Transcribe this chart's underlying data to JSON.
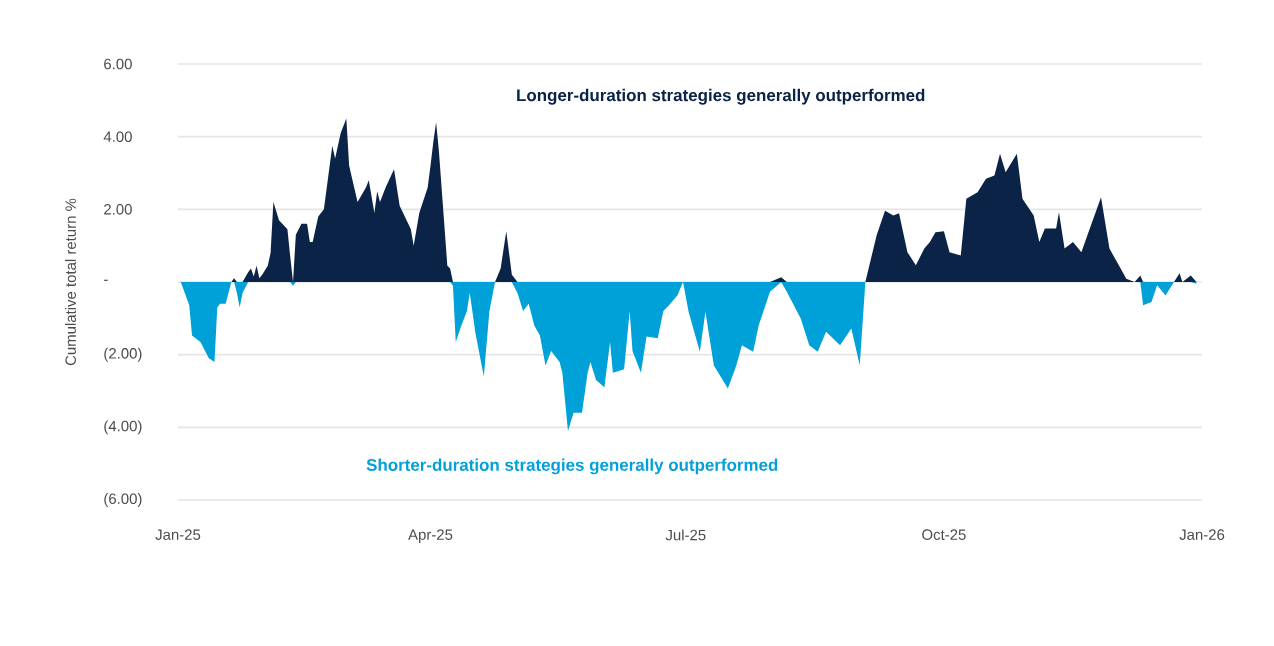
{
  "chart_data": {
    "type": "area",
    "ylabel": "Cumulative total return %",
    "annotations": [
      "Longer-duration strategies generally outperformed",
      "Shorter-duration strategies generally outperformed"
    ],
    "x": [
      "2025-01-02",
      "2025-01-05",
      "2025-01-06",
      "2025-01-09",
      "2025-01-12",
      "2025-01-14",
      "2025-01-15",
      "2025-01-16",
      "2025-01-18",
      "2025-01-20",
      "2025-01-21",
      "2025-01-22",
      "2025-01-23",
      "2025-01-24",
      "2025-01-26",
      "2025-01-27",
      "2025-01-28",
      "2025-01-29",
      "2025-01-30",
      "2025-01-31",
      "2025-02-02",
      "2025-02-03",
      "2025-02-04",
      "2025-02-06",
      "2025-02-09",
      "2025-02-10",
      "2025-02-11",
      "2025-02-12",
      "2025-02-14",
      "2025-02-16",
      "2025-02-17",
      "2025-02-18",
      "2025-02-20",
      "2025-02-22",
      "2025-02-25",
      "2025-02-26",
      "2025-02-28",
      "2025-03-02",
      "2025-03-03",
      "2025-03-06",
      "2025-03-09",
      "2025-03-10",
      "2025-03-12",
      "2025-03-13",
      "2025-03-14",
      "2025-03-16",
      "2025-03-19",
      "2025-03-21",
      "2025-03-25",
      "2025-03-26",
      "2025-03-28",
      "2025-03-31",
      "2025-04-01",
      "2025-04-02",
      "2025-04-03",
      "2025-04-04",
      "2025-04-07",
      "2025-04-08",
      "2025-04-09",
      "2025-04-10",
      "2025-04-12",
      "2025-04-14",
      "2025-04-15",
      "2025-04-17",
      "2025-04-20",
      "2025-04-22",
      "2025-04-24",
      "2025-04-26",
      "2025-04-28",
      "2025-04-30",
      "2025-05-02",
      "2025-05-04",
      "2025-05-06",
      "2025-05-08",
      "2025-05-10",
      "2025-05-12",
      "2025-05-14",
      "2025-05-17",
      "2025-05-18",
      "2025-05-20",
      "2025-05-22",
      "2025-05-25",
      "2025-05-27",
      "2025-05-28",
      "2025-05-30",
      "2025-06-02",
      "2025-06-04",
      "2025-06-05",
      "2025-06-09",
      "2025-06-11",
      "2025-06-12",
      "2025-06-15",
      "2025-06-17",
      "2025-06-21",
      "2025-06-23",
      "2025-06-25",
      "2025-06-28",
      "2025-06-30",
      "2025-07-02",
      "2025-07-06",
      "2025-07-08",
      "2025-07-11",
      "2025-07-16",
      "2025-07-19",
      "2025-07-21",
      "2025-07-25",
      "2025-07-27",
      "2025-07-31",
      "2025-08-04",
      "2025-08-06",
      "2025-08-11",
      "2025-08-14",
      "2025-08-17",
      "2025-08-20",
      "2025-08-25",
      "2025-08-29",
      "2025-09-01",
      "2025-09-03",
      "2025-09-07",
      "2025-09-10",
      "2025-09-13",
      "2025-09-15",
      "2025-09-18",
      "2025-09-21",
      "2025-09-24",
      "2025-09-26",
      "2025-09-28",
      "2025-10-01",
      "2025-10-03",
      "2025-10-07",
      "2025-10-09",
      "2025-10-13",
      "2025-10-16",
      "2025-10-19",
      "2025-10-21",
      "2025-10-23",
      "2025-10-27",
      "2025-10-29",
      "2025-11-02",
      "2025-11-04",
      "2025-11-06",
      "2025-11-10",
      "2025-11-11",
      "2025-11-13",
      "2025-11-16",
      "2025-11-19",
      "2025-11-22",
      "2025-11-26",
      "2025-11-29",
      "2025-12-03",
      "2025-12-05",
      "2025-12-08",
      "2025-12-10",
      "2025-12-11",
      "2025-12-14",
      "2025-12-16",
      "2025-12-19",
      "2025-12-22",
      "2025-12-24",
      "2025-12-25",
      "2025-12-28",
      "2025-12-30"
    ],
    "series": [
      {
        "color": "#0b2346",
        "values": [
          0,
          0,
          0,
          0,
          0,
          0,
          0,
          0,
          0,
          0,
          0.1,
          0,
          0,
          0,
          0.27,
          0.37,
          0.15,
          0.45,
          0.1,
          0.2,
          0.45,
          0.8,
          2.2,
          1.7,
          1.45,
          0.7,
          0,
          1.3,
          1.6,
          1.6,
          1.1,
          1.1,
          1.8,
          2.0,
          3.75,
          3.4,
          4.1,
          4.5,
          3.2,
          2.2,
          2.6,
          2.8,
          1.9,
          2.5,
          2.2,
          2.6,
          3.1,
          2.1,
          1.45,
          1.0,
          1.9,
          2.6,
          3.2,
          3.85,
          4.4,
          3.6,
          0.45,
          0.37,
          0,
          0,
          0,
          0,
          0,
          0,
          0,
          0,
          0,
          0.37,
          1.4,
          0.2,
          0,
          0,
          0,
          0,
          0,
          0,
          0,
          0,
          0,
          0,
          0,
          0,
          0,
          0,
          0,
          0,
          0,
          0,
          0,
          0,
          0,
          0,
          0,
          0,
          0,
          0,
          0,
          0,
          0,
          0,
          0,
          0,
          0,
          0,
          0,
          0,
          0,
          0,
          0.13,
          0,
          0,
          0,
          0,
          0,
          0,
          0,
          0,
          0,
          1.28,
          1.96,
          1.83,
          1.89,
          0.82,
          0.46,
          0.92,
          1.1,
          1.37,
          1.4,
          0.82,
          0.73,
          2.29,
          2.47,
          2.84,
          2.93,
          3.53,
          3.02,
          3.53,
          2.29,
          1.83,
          1.1,
          1.47,
          1.47,
          1.92,
          0.92,
          1.1,
          0.82,
          1.47,
          2.33,
          0.92,
          0.37,
          0.09,
          0,
          0.18,
          0,
          0,
          0,
          0,
          0,
          0.24,
          0,
          0.18,
          0
        ]
      },
      {
        "color": "#00a0d8",
        "values": [
          0,
          -0.64,
          -1.47,
          -1.65,
          -2.1,
          -2.2,
          -0.7,
          -0.6,
          -0.6,
          0,
          0,
          -0.3,
          -0.7,
          -0.3,
          0,
          0,
          0,
          0,
          0,
          0,
          0,
          0,
          0,
          0,
          0,
          0,
          -0.1,
          0,
          0,
          0,
          0,
          0,
          0,
          0,
          0,
          0,
          0,
          0,
          0,
          0,
          0,
          0,
          0,
          0,
          0,
          0,
          0,
          0,
          0,
          0,
          0,
          0,
          0,
          0,
          0,
          0,
          0,
          0,
          -0.1,
          -1.65,
          -1.2,
          -0.8,
          -0.3,
          -1.4,
          -2.6,
          -0.8,
          0,
          0,
          0,
          0,
          -0.3,
          -0.8,
          -0.6,
          -1.2,
          -1.47,
          -2.3,
          -1.9,
          -2.2,
          -2.5,
          -4.1,
          -3.6,
          -3.6,
          -2.5,
          -2.2,
          -2.7,
          -2.9,
          -1.65,
          -2.5,
          -2.4,
          -0.8,
          -1.9,
          -2.5,
          -1.5,
          -1.55,
          -0.8,
          -0.64,
          -0.37,
          0,
          -0.82,
          -1.92,
          -0.82,
          -2.3,
          -2.93,
          -2.3,
          -1.74,
          -1.92,
          -1.19,
          -0.27,
          0,
          -0.27,
          -1.01,
          -1.74,
          -1.92,
          -1.37,
          -1.74,
          -1.28,
          -2.29,
          0,
          0,
          0,
          0,
          0,
          0,
          0,
          0,
          0,
          0,
          0,
          0,
          0,
          0,
          0,
          0,
          0,
          0,
          0,
          0,
          0,
          0,
          0,
          0,
          0,
          0,
          0,
          0,
          0,
          0,
          0,
          0,
          0,
          0,
          0,
          0,
          -0.64,
          -0.55,
          -0.09,
          -0.37,
          0,
          0,
          0,
          0,
          -0.05
        ]
      }
    ],
    "xlim": [
      "2025-01-01",
      "2026-01-01"
    ],
    "xticks": [
      {
        "value": "2025-01-01",
        "label": "Jan-25"
      },
      {
        "value": "2025-04-01",
        "label": "Apr-25"
      },
      {
        "value": "2025-07-01",
        "label": "Jul-25"
      },
      {
        "value": "2025-10-01",
        "label": "Oct-25"
      },
      {
        "value": "2026-01-01",
        "label": "Jan-26"
      }
    ],
    "ylim": [
      -6,
      6
    ],
    "yticks": [
      {
        "value": 6,
        "label": "6.00"
      },
      {
        "value": 4,
        "label": "4.00"
      },
      {
        "value": 2,
        "label": "2.00"
      },
      {
        "value": 0,
        "label": "-"
      },
      {
        "value": -2,
        "label": "(2.00)"
      },
      {
        "value": -4,
        "label": "(4.00)"
      },
      {
        "value": -6,
        "label": "(6.00)"
      }
    ],
    "grid": "y"
  }
}
